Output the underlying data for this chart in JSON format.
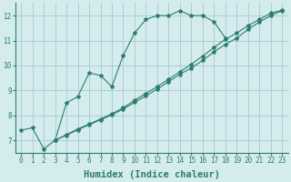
{
  "line1_x": [
    0,
    1,
    2,
    3,
    4,
    5,
    6,
    7,
    8,
    9,
    10,
    11,
    12,
    13,
    14,
    15,
    16,
    17,
    18
  ],
  "line1_y": [
    7.4,
    7.5,
    6.65,
    7.0,
    8.5,
    8.75,
    9.7,
    9.6,
    9.15,
    10.4,
    11.3,
    11.85,
    12.0,
    12.0,
    12.2,
    12.0,
    12.0,
    11.75,
    11.1
  ],
  "line2_x": [
    3,
    4,
    5,
    6,
    7,
    8,
    9,
    10,
    11,
    12,
    13,
    14,
    15,
    16,
    17,
    18,
    19,
    20,
    21,
    22,
    23
  ],
  "line2_y": [
    7.0,
    7.2,
    7.42,
    7.62,
    7.82,
    8.02,
    8.25,
    8.52,
    8.78,
    9.05,
    9.35,
    9.65,
    9.9,
    10.2,
    10.55,
    10.85,
    11.1,
    11.45,
    11.75,
    12.0,
    12.2
  ],
  "line3_x": [
    3,
    4,
    5,
    6,
    7,
    8,
    9,
    10,
    11,
    12,
    13,
    14,
    15,
    16,
    17,
    18,
    19,
    20,
    21,
    22,
    23
  ],
  "line3_y": [
    7.0,
    7.22,
    7.45,
    7.65,
    7.85,
    8.06,
    8.3,
    8.6,
    8.88,
    9.15,
    9.45,
    9.75,
    10.05,
    10.38,
    10.72,
    11.05,
    11.3,
    11.6,
    11.85,
    12.1,
    12.22
  ],
  "color": "#2d7d6e",
  "bg_color": "#d4ecee",
  "grid_color": "#aecdd2",
  "xlabel": "Humidex (Indice chaleur)",
  "xlim": [
    -0.5,
    23.5
  ],
  "ylim": [
    6.5,
    12.5
  ],
  "xticks": [
    0,
    1,
    2,
    3,
    4,
    5,
    6,
    7,
    8,
    9,
    10,
    11,
    12,
    13,
    14,
    15,
    16,
    17,
    18,
    19,
    20,
    21,
    22,
    23
  ],
  "yticks": [
    7,
    8,
    9,
    10,
    11,
    12
  ],
  "tick_fontsize": 5.5,
  "xlabel_fontsize": 7.5
}
